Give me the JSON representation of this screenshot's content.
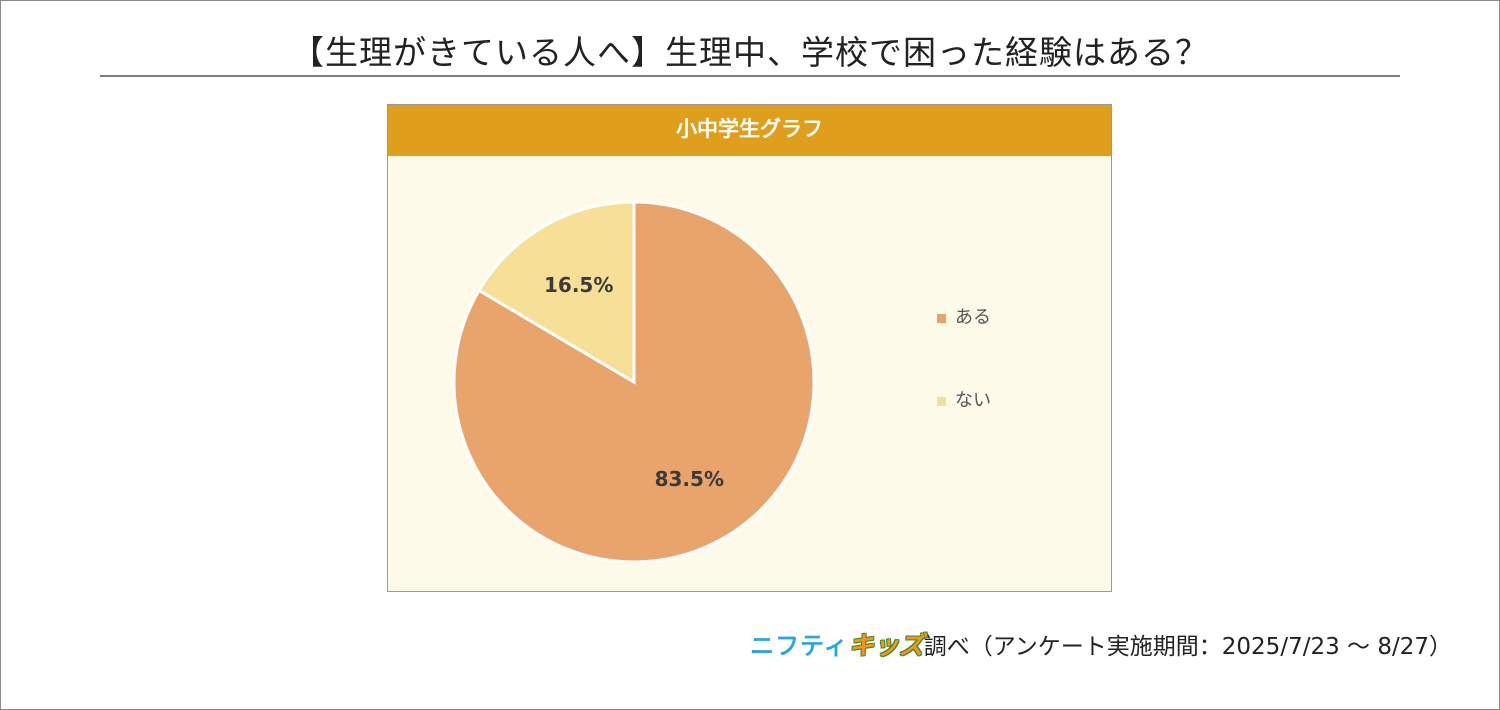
{
  "title": "【生理がきている人へ】生理中、学校で困った経験はある？",
  "colors": {
    "header_bg": "#e09e1d",
    "panel_bg": "#fdfaea",
    "aru": "#e8a46b",
    "nai": "#f7df98"
  },
  "chart_data": {
    "type": "pie",
    "title": "小中学生グラフ",
    "slices": [
      {
        "label": "ある",
        "value": 83.5,
        "value_label": "83.5%",
        "color": "#e8a46b"
      },
      {
        "label": "ない",
        "value": 16.5,
        "value_label": "16.5%",
        "color": "#f7df98"
      }
    ],
    "legend_position": "right"
  },
  "footer": {
    "brand_part1": "ニフティ",
    "brand_part2": "キッズ",
    "note": "調べ（アンケート実施期間：2025/7/23 ～ 8/27）"
  }
}
